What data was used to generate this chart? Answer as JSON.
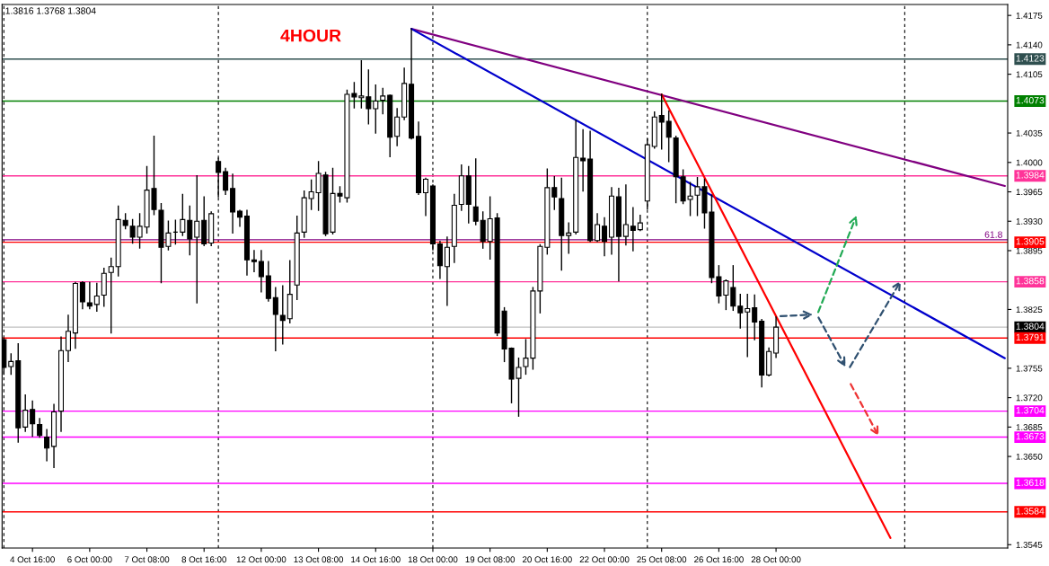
{
  "chart_data": {
    "type": "candlestick",
    "title": "4HOUR",
    "annotations": [
      "1.3816 1.3768 1.3804",
      {
        "text": "61.8",
        "y": 1.3908
      }
    ],
    "categories": [
      null,
      null,
      null,
      null,
      "4 Oct 16:00",
      null,
      null,
      null,
      null,
      null,
      null,
      null,
      "6 Oct 00:00",
      null,
      null,
      null,
      null,
      null,
      null,
      null,
      "7 Oct 08:00",
      null,
      null,
      null,
      null,
      null,
      null,
      null,
      "8 Oct 16:00",
      null,
      null,
      null,
      null,
      null,
      null,
      null,
      "12 Oct 00:00",
      null,
      null,
      null,
      null,
      null,
      null,
      null,
      "13 Oct 08:00",
      null,
      null,
      null,
      null,
      null,
      null,
      null,
      "14 Oct 16:00",
      null,
      null,
      null,
      null,
      null,
      null,
      null,
      "18 Oct 00:00",
      null,
      null,
      null,
      null,
      null,
      null,
      null,
      "19 Oct 08:00",
      null,
      null,
      null,
      null,
      null,
      null,
      null,
      "20 Oct 16:00",
      null,
      null,
      null,
      null,
      null,
      null,
      null,
      "22 Oct 00:00",
      null,
      null,
      null,
      null,
      null,
      null,
      null,
      "25 Oct 08:00",
      null,
      null,
      null,
      null,
      null,
      null,
      null,
      "26 Oct 16:00",
      null,
      null,
      null,
      null,
      null,
      null,
      null,
      "28 Oct 00:00",
      null,
      null,
      null,
      null,
      null,
      null,
      null,
      null,
      null,
      null,
      null,
      null,
      null,
      null,
      null,
      null,
      null,
      null,
      null,
      null,
      null,
      null,
      null,
      null,
      null,
      null,
      null,
      null,
      null,
      null,
      null,
      null
    ],
    "ohlc": [
      [
        1.3789,
        1.3791,
        1.3748,
        1.3756
      ],
      [
        1.3757,
        1.3772,
        1.3748,
        1.3763
      ],
      [
        1.3764,
        1.3784,
        1.3667,
        1.3684
      ],
      [
        1.3685,
        1.3723,
        1.368,
        1.3705
      ],
      [
        1.3706,
        1.3716,
        1.3674,
        1.3689
      ],
      [
        1.3688,
        1.3695,
        1.3673,
        1.3675
      ],
      [
        1.3673,
        1.3682,
        1.3645,
        1.366
      ],
      [
        1.3662,
        1.3712,
        1.3637,
        1.3703
      ],
      [
        1.3704,
        1.3792,
        1.368,
        1.3776
      ],
      [
        1.3776,
        1.3818,
        1.3763,
        1.3799
      ],
      [
        1.3797,
        1.3857,
        1.3779,
        1.3856
      ],
      [
        1.3857,
        1.3858,
        1.3826,
        1.3834
      ],
      [
        1.3833,
        1.3857,
        1.3826,
        1.3829
      ],
      [
        1.3831,
        1.3856,
        1.3823,
        1.3841
      ],
      [
        1.3842,
        1.3874,
        1.3829,
        1.3868
      ],
      [
        1.3869,
        1.3886,
        1.3797,
        1.3876
      ],
      [
        1.3876,
        1.3948,
        1.3865,
        1.3932
      ],
      [
        1.3931,
        1.3939,
        1.3921,
        1.3925
      ],
      [
        1.3924,
        1.3932,
        1.3904,
        1.3911
      ],
      [
        1.3911,
        1.3939,
        1.3898,
        1.3924
      ],
      [
        1.3923,
        1.3995,
        1.3916,
        1.3967
      ],
      [
        1.3969,
        1.4031,
        1.3938,
        1.3944
      ],
      [
        1.3943,
        1.3951,
        1.3857,
        1.3899
      ],
      [
        1.39,
        1.393,
        1.3896,
        1.3916
      ],
      [
        1.3917,
        1.3931,
        1.3903,
        1.3917
      ],
      [
        1.3917,
        1.3962,
        1.3913,
        1.3932
      ],
      [
        1.3931,
        1.3948,
        1.389,
        1.3909
      ],
      [
        1.3911,
        1.3984,
        1.3833,
        1.393
      ],
      [
        1.3931,
        1.3959,
        1.3901,
        1.3903
      ],
      [
        1.3904,
        1.3941,
        1.3901,
        1.3939
      ],
      [
        1.4001,
        1.4005,
        1.3959,
        1.3988
      ],
      [
        1.3989,
        1.3993,
        1.3962,
        1.3967
      ],
      [
        1.3969,
        1.3986,
        1.3916,
        1.3941
      ],
      [
        1.3942,
        1.3943,
        1.3924,
        1.3935
      ],
      [
        1.3936,
        1.3943,
        1.3866,
        1.3884
      ],
      [
        1.3884,
        1.3895,
        1.387,
        1.3882
      ],
      [
        1.3882,
        1.3895,
        1.3846,
        1.3864
      ],
      [
        1.3865,
        1.3882,
        1.3835,
        1.3838
      ],
      [
        1.3839,
        1.3851,
        1.3776,
        1.3819
      ],
      [
        1.3818,
        1.3853,
        1.3784,
        1.3812
      ],
      [
        1.3814,
        1.3883,
        1.3809,
        1.3843
      ],
      [
        1.3854,
        1.3936,
        1.3837,
        1.3916
      ],
      [
        1.3917,
        1.3966,
        1.3911,
        1.3958
      ],
      [
        1.3957,
        1.3979,
        1.3944,
        1.3965
      ],
      [
        1.3964,
        1.4001,
        1.3943,
        1.3987
      ],
      [
        1.3985,
        1.3988,
        1.3913,
        1.3915
      ],
      [
        1.3917,
        1.3993,
        1.3915,
        1.3963
      ],
      [
        1.3963,
        1.3971,
        1.3953,
        1.396
      ],
      [
        1.3958,
        1.4086,
        1.3953,
        1.4081
      ],
      [
        1.4082,
        1.4095,
        1.4065,
        1.4078
      ],
      [
        1.4077,
        1.4121,
        1.4065,
        1.4079
      ],
      [
        1.4078,
        1.411,
        1.4046,
        1.4064
      ],
      [
        1.4064,
        1.4092,
        1.4035,
        1.4073
      ],
      [
        1.4074,
        1.4088,
        1.4058,
        1.4079
      ],
      [
        1.408,
        1.408,
        1.4007,
        1.403
      ],
      [
        1.4031,
        1.4064,
        1.402,
        1.4054
      ],
      [
        1.4054,
        1.4112,
        1.4051,
        1.4094
      ],
      [
        1.4093,
        1.4159,
        1.4028,
        1.4029
      ],
      [
        1.4031,
        1.4048,
        1.3962,
        1.3964
      ],
      [
        1.3964,
        1.3981,
        1.3937,
        1.398
      ],
      [
        1.3972,
        1.3973,
        1.3896,
        1.3903
      ],
      [
        1.3903,
        1.3906,
        1.3862,
        1.3877
      ],
      [
        1.3876,
        1.3911,
        1.383,
        1.3899
      ],
      [
        1.39,
        1.3962,
        1.3881,
        1.3949
      ],
      [
        1.395,
        1.3997,
        1.3943,
        1.3984
      ],
      [
        1.3984,
        1.3995,
        1.3928,
        1.395
      ],
      [
        1.3947,
        1.4004,
        1.3926,
        1.393
      ],
      [
        1.3931,
        1.3941,
        1.3898,
        1.3906
      ],
      [
        1.3906,
        1.3959,
        1.3885,
        1.3933
      ],
      [
        1.3934,
        1.3939,
        1.3794,
        1.3797
      ],
      [
        1.3823,
        1.3827,
        1.3763,
        1.3778
      ],
      [
        1.3779,
        1.3779,
        1.3714,
        1.3742
      ],
      [
        1.3743,
        1.3767,
        1.3698,
        1.3756
      ],
      [
        1.3757,
        1.3789,
        1.3748,
        1.3767
      ],
      [
        1.3767,
        1.3851,
        1.3754,
        1.3847
      ],
      [
        1.3847,
        1.3902,
        1.3821,
        1.39
      ],
      [
        1.3899,
        1.3992,
        1.3891,
        1.397
      ],
      [
        1.397,
        1.3983,
        1.3944,
        1.3959
      ],
      [
        1.3957,
        1.3981,
        1.3872,
        1.3913
      ],
      [
        1.3913,
        1.3928,
        1.3892,
        1.3916
      ],
      [
        1.3917,
        1.405,
        1.3915,
        1.4006
      ],
      [
        1.4005,
        1.4039,
        1.3966,
        1.4002
      ],
      [
        1.4004,
        1.4037,
        1.3906,
        1.3907
      ],
      [
        1.3907,
        1.3939,
        1.3906,
        1.3926
      ],
      [
        1.3924,
        1.3934,
        1.3889,
        1.3906
      ],
      [
        1.3911,
        1.397,
        1.3891,
        1.396
      ],
      [
        1.3959,
        1.3969,
        1.3859,
        1.3912
      ],
      [
        1.3912,
        1.3973,
        1.3902,
        1.3926
      ],
      [
        1.3924,
        1.3946,
        1.3895,
        1.3919
      ],
      [
        1.392,
        1.3937,
        1.3919,
        1.3928
      ],
      [
        1.3954,
        1.4028,
        1.3945,
        1.4021
      ],
      [
        1.4019,
        1.406,
        1.4017,
        1.4054
      ],
      [
        1.4056,
        1.4081,
        1.4016,
        1.4048
      ],
      [
        1.4049,
        1.4061,
        1.4001,
        1.403
      ],
      [
        1.4029,
        1.4031,
        1.3952,
        1.3983
      ],
      [
        1.3983,
        1.3991,
        1.3951,
        1.3954
      ],
      [
        1.3956,
        1.3976,
        1.3937,
        1.396
      ],
      [
        1.3961,
        1.3982,
        1.3937,
        1.3971
      ],
      [
        1.3971,
        1.398,
        1.3922,
        1.394
      ],
      [
        1.3941,
        1.3961,
        1.3857,
        1.3863
      ],
      [
        1.3864,
        1.3877,
        1.3833,
        1.3841
      ],
      [
        1.3842,
        1.386,
        1.3825,
        1.3859
      ],
      [
        1.3851,
        1.3877,
        1.3824,
        1.3829
      ],
      [
        1.3829,
        1.3843,
        1.3803,
        1.3821
      ],
      [
        1.3822,
        1.3843,
        1.3769,
        1.3826
      ],
      [
        1.3827,
        1.3842,
        1.3789,
        1.381
      ],
      [
        1.3811,
        1.3813,
        1.3733,
        1.3747
      ],
      [
        1.3747,
        1.3779,
        1.3746,
        1.3775
      ],
      [
        1.3773,
        1.3816,
        1.3768,
        1.3804
      ],
      null,
      null,
      null,
      null,
      null,
      null,
      null,
      null,
      null,
      null,
      null,
      null,
      null,
      null,
      null,
      null,
      null,
      null,
      null,
      null,
      null,
      null,
      null,
      null,
      null,
      null,
      null,
      null,
      null,
      null,
      null,
      null
    ],
    "series": [
      {
        "type": "line",
        "color": "#800080",
        "values": [
          null,
          null,
          null,
          null,
          null,
          null,
          null,
          null,
          null,
          null,
          null,
          null,
          null,
          null,
          null,
          null,
          null,
          null,
          null,
          null,
          null,
          null,
          null,
          null,
          null,
          null,
          null,
          null,
          null,
          null,
          null,
          null,
          null,
          null,
          null,
          null,
          null,
          null,
          null,
          null,
          null,
          null,
          null,
          null,
          null,
          null,
          null,
          null,
          null,
          null,
          null,
          null,
          null,
          null,
          null,
          null,
          null,
          1.4159,
          null,
          null,
          null,
          null,
          null,
          null,
          null,
          null,
          null,
          null,
          null,
          null,
          null,
          null,
          null,
          null,
          null,
          null,
          null,
          null,
          null,
          null,
          null,
          null,
          null,
          null,
          null,
          null,
          null,
          null,
          null,
          null,
          null,
          null,
          null,
          null,
          null,
          null,
          null,
          null,
          null,
          null,
          null,
          null,
          null,
          null,
          null,
          null,
          null,
          null,
          null,
          null,
          null,
          null,
          null,
          null,
          null,
          null,
          null,
          null,
          null,
          null,
          null,
          null,
          null,
          null,
          null,
          null,
          null,
          null,
          null,
          null,
          null,
          null,
          null,
          null,
          null,
          null,
          null,
          null,
          null,
          null,
          1.3972
        ]
      },
      {
        "type": "line",
        "color": "#0000cc",
        "values": [
          null,
          null,
          null,
          null,
          null,
          null,
          null,
          null,
          null,
          null,
          null,
          null,
          null,
          null,
          null,
          null,
          null,
          null,
          null,
          null,
          null,
          null,
          null,
          null,
          null,
          null,
          null,
          null,
          null,
          null,
          null,
          null,
          null,
          null,
          null,
          null,
          null,
          null,
          null,
          null,
          null,
          null,
          null,
          null,
          null,
          null,
          null,
          null,
          null,
          null,
          null,
          null,
          null,
          null,
          null,
          null,
          null,
          1.4159,
          null,
          null,
          null,
          null,
          null,
          null,
          null,
          null,
          null,
          null,
          null,
          null,
          null,
          null,
          null,
          null,
          null,
          null,
          null,
          null,
          null,
          null,
          null,
          null,
          null,
          null,
          null,
          null,
          null,
          null,
          null,
          null,
          null,
          null,
          null,
          null,
          null,
          null,
          null,
          null,
          null,
          null,
          null,
          null,
          null,
          null,
          null,
          null,
          null,
          null,
          null,
          null,
          null,
          null,
          null,
          null,
          null,
          null,
          null,
          null,
          null,
          null,
          null,
          null,
          null,
          null,
          null,
          null,
          null,
          null,
          null,
          null,
          null,
          null,
          null,
          null,
          null,
          null,
          null,
          null,
          null,
          null,
          1.3767
        ]
      },
      {
        "type": "line",
        "color": "#ff0000",
        "values": [
          null,
          null,
          null,
          null,
          null,
          null,
          null,
          null,
          null,
          null,
          null,
          null,
          null,
          null,
          null,
          null,
          null,
          null,
          null,
          null,
          null,
          null,
          null,
          null,
          null,
          null,
          null,
          null,
          null,
          null,
          null,
          null,
          null,
          null,
          null,
          null,
          null,
          null,
          null,
          null,
          null,
          null,
          null,
          null,
          null,
          null,
          null,
          null,
          null,
          null,
          null,
          null,
          null,
          null,
          null,
          null,
          null,
          null,
          null,
          null,
          null,
          null,
          null,
          null,
          null,
          null,
          null,
          null,
          null,
          null,
          null,
          null,
          null,
          null,
          null,
          null,
          null,
          null,
          null,
          null,
          null,
          null,
          null,
          null,
          null,
          null,
          null,
          null,
          null,
          null,
          null,
          null,
          1.4081,
          null,
          null,
          null,
          null,
          null,
          null,
          null,
          null,
          null,
          null,
          null,
          null,
          null,
          null,
          null,
          null,
          null,
          null,
          null,
          null,
          null,
          null,
          null,
          null,
          null,
          null,
          null,
          null,
          null,
          null,
          null,
          1.3553,
          null,
          null,
          null,
          null,
          null,
          null,
          null,
          null,
          null,
          null,
          null,
          null,
          null,
          null,
          null,
          null
        ]
      }
    ],
    "ref_lines": [
      {
        "axis": "y",
        "value": 1.4123,
        "label": "1.4123",
        "color": "#2f4f4f"
      },
      {
        "axis": "y",
        "value": 1.4073,
        "label": "1.4073",
        "color": "#008000"
      },
      {
        "axis": "y",
        "value": 1.3984,
        "label": "1.3984",
        "color": "#ff3399"
      },
      {
        "axis": "y",
        "value": 1.3908,
        "color": "#800080"
      },
      {
        "axis": "y",
        "value": 1.3905,
        "label": "1.3905",
        "color": "#ff0000"
      },
      {
        "axis": "y",
        "value": 1.3858,
        "label": "1.3858",
        "color": "#ff3399"
      },
      {
        "axis": "y",
        "value": 1.3804,
        "label": "1.3804",
        "color": "#c0c0c0"
      },
      {
        "axis": "y",
        "value": 1.3791,
        "label": "1.3791",
        "color": "#ff0000"
      },
      {
        "axis": "y",
        "value": 1.3704,
        "label": "1.3704",
        "color": "#ff00ff"
      },
      {
        "axis": "y",
        "value": 1.3673,
        "label": "1.3673",
        "color": "#ff00ff"
      },
      {
        "axis": "y",
        "value": 1.3618,
        "label": "1.3618",
        "color": "#ff00ff"
      },
      {
        "axis": "y",
        "value": 1.3584,
        "label": "1.3584",
        "color": "#ff0000"
      }
    ],
    "ylim": [
      1.3541,
      1.4188
    ],
    "yticks": [
      1.4175,
      {
        "value": 1.414,
        "label": "1.4140"
      },
      1.4105,
      1.4035,
      {
        "value": 1.4,
        "label": "1.4000"
      },
      1.3965,
      {
        "value": 1.393,
        "label": "1.3930"
      },
      1.3895,
      1.3825,
      1.3755,
      {
        "value": 1.372,
        "label": "1.3720"
      },
      1.3685,
      {
        "value": 1.365,
        "label": "1.3650"
      },
      1.3545
    ],
    "grid": false,
    "legend": false
  }
}
